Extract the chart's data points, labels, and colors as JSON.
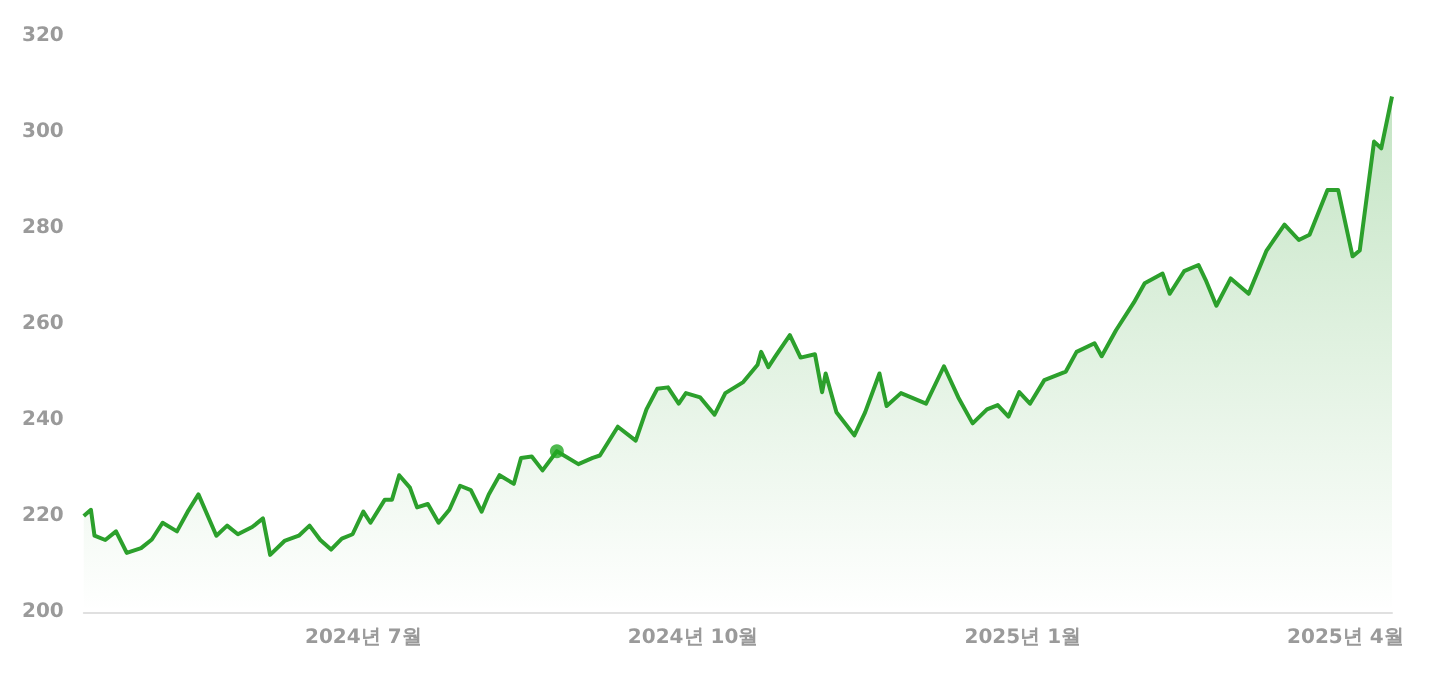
{
  "chart_data": {
    "type": "area",
    "x": [
      "2024-04-14",
      "2024-04-16",
      "2024-04-17",
      "2024-04-20",
      "2024-04-23",
      "2024-04-26",
      "2024-04-30",
      "2024-05-03",
      "2024-05-06",
      "2024-05-10",
      "2024-05-13",
      "2024-05-16",
      "2024-05-21",
      "2024-05-24",
      "2024-05-27",
      "2024-05-31",
      "2024-06-03",
      "2024-06-05",
      "2024-06-09",
      "2024-06-13",
      "2024-06-16",
      "2024-06-19",
      "2024-06-22",
      "2024-06-25",
      "2024-06-28",
      "2024-07-01",
      "2024-07-03",
      "2024-07-07",
      "2024-07-09",
      "2024-07-11",
      "2024-07-14",
      "2024-07-16",
      "2024-07-19",
      "2024-07-22",
      "2024-07-25",
      "2024-07-28",
      "2024-07-31",
      "2024-08-03",
      "2024-08-05",
      "2024-08-08",
      "2024-08-12",
      "2024-08-14",
      "2024-08-17",
      "2024-08-20",
      "2024-08-24",
      "2024-08-30",
      "2024-09-03",
      "2024-09-05",
      "2024-09-10",
      "2024-09-15",
      "2024-09-18",
      "2024-09-21",
      "2024-09-24",
      "2024-09-27",
      "2024-09-29",
      "2024-10-03",
      "2024-10-07",
      "2024-10-10",
      "2024-10-15",
      "2024-10-19",
      "2024-10-20",
      "2024-10-22",
      "2024-10-24",
      "2024-10-28",
      "2024-10-31",
      "2024-11-04",
      "2024-11-06",
      "2024-11-07",
      "2024-11-10",
      "2024-11-15",
      "2024-11-18",
      "2024-11-22",
      "2024-11-24",
      "2024-11-28",
      "2024-12-05",
      "2024-12-10",
      "2024-12-14",
      "2024-12-18",
      "2024-12-22",
      "2024-12-25",
      "2024-12-28",
      "2024-12-31",
      "2025-01-03",
      "2025-01-07",
      "2025-01-13",
      "2025-01-16",
      "2025-01-21",
      "2025-01-23",
      "2025-01-27",
      "2025-02-01",
      "2025-02-04",
      "2025-02-09",
      "2025-02-11",
      "2025-02-15",
      "2025-02-19",
      "2025-02-21",
      "2025-02-24",
      "2025-02-28",
      "2025-03-05",
      "2025-03-10",
      "2025-03-15",
      "2025-03-19",
      "2025-03-22",
      "2025-03-27",
      "2025-03-30",
      "2025-04-03",
      "2025-04-05",
      "2025-04-09",
      "2025-04-11",
      "2025-04-14"
    ],
    "series": [
      {
        "color": "#2ca02c",
        "values": [
          220.0,
          221.3,
          215.9,
          215.0,
          216.8,
          212.3,
          213.3,
          215.1,
          218.6,
          216.8,
          220.9,
          224.5,
          215.9,
          218.0,
          216.2,
          217.7,
          219.5,
          211.9,
          214.8,
          215.9,
          218.0,
          215.0,
          213.0,
          215.3,
          216.2,
          220.9,
          218.6,
          223.4,
          223.4,
          228.5,
          225.9,
          221.8,
          222.5,
          218.6,
          221.3,
          226.3,
          225.4,
          220.9,
          224.5,
          228.5,
          226.7,
          232.1,
          232.4,
          229.5,
          233.5,
          230.8,
          232.1,
          232.6,
          238.6,
          235.7,
          242.2,
          246.5,
          246.8,
          243.4,
          245.6,
          244.7,
          241.1,
          245.6,
          247.9,
          251.5,
          254.2,
          251.0,
          253.3,
          257.7,
          253.0,
          253.7,
          245.8,
          249.7,
          241.6,
          236.8,
          241.6,
          249.7,
          242.9,
          245.6,
          243.4,
          251.2,
          244.7,
          239.3,
          242.2,
          243.1,
          240.7,
          245.8,
          243.4,
          248.3,
          250.1,
          254.2,
          256.0,
          253.3,
          258.7,
          264.5,
          268.5,
          270.5,
          266.3,
          271.0,
          272.3,
          269.2,
          263.8,
          269.5,
          266.3,
          275.3,
          280.7,
          277.5,
          278.6,
          287.9,
          287.9,
          274.1,
          275.3,
          298.0,
          296.6,
          307.4
        ]
      },
      {
        "type": "scatter",
        "color": "#22a722",
        "x": [
          "2024-08-24"
        ],
        "values": [
          233.5
        ]
      }
    ],
    "xlim": [
      "2024-04-14",
      "2025-04-14"
    ],
    "xticks": [
      {
        "value": "2024-07-01",
        "label": "2024년 7월"
      },
      {
        "value": "2024-10-01",
        "label": "2024년 10월"
      },
      {
        "value": "2025-01-01",
        "label": "2025년 1월"
      },
      {
        "value": "2025-04-01",
        "label": "2025년 4월"
      }
    ],
    "ylim": [
      200,
      320
    ],
    "yticks": [
      200,
      220,
      240,
      260,
      280,
      300,
      320
    ],
    "grid": false
  }
}
